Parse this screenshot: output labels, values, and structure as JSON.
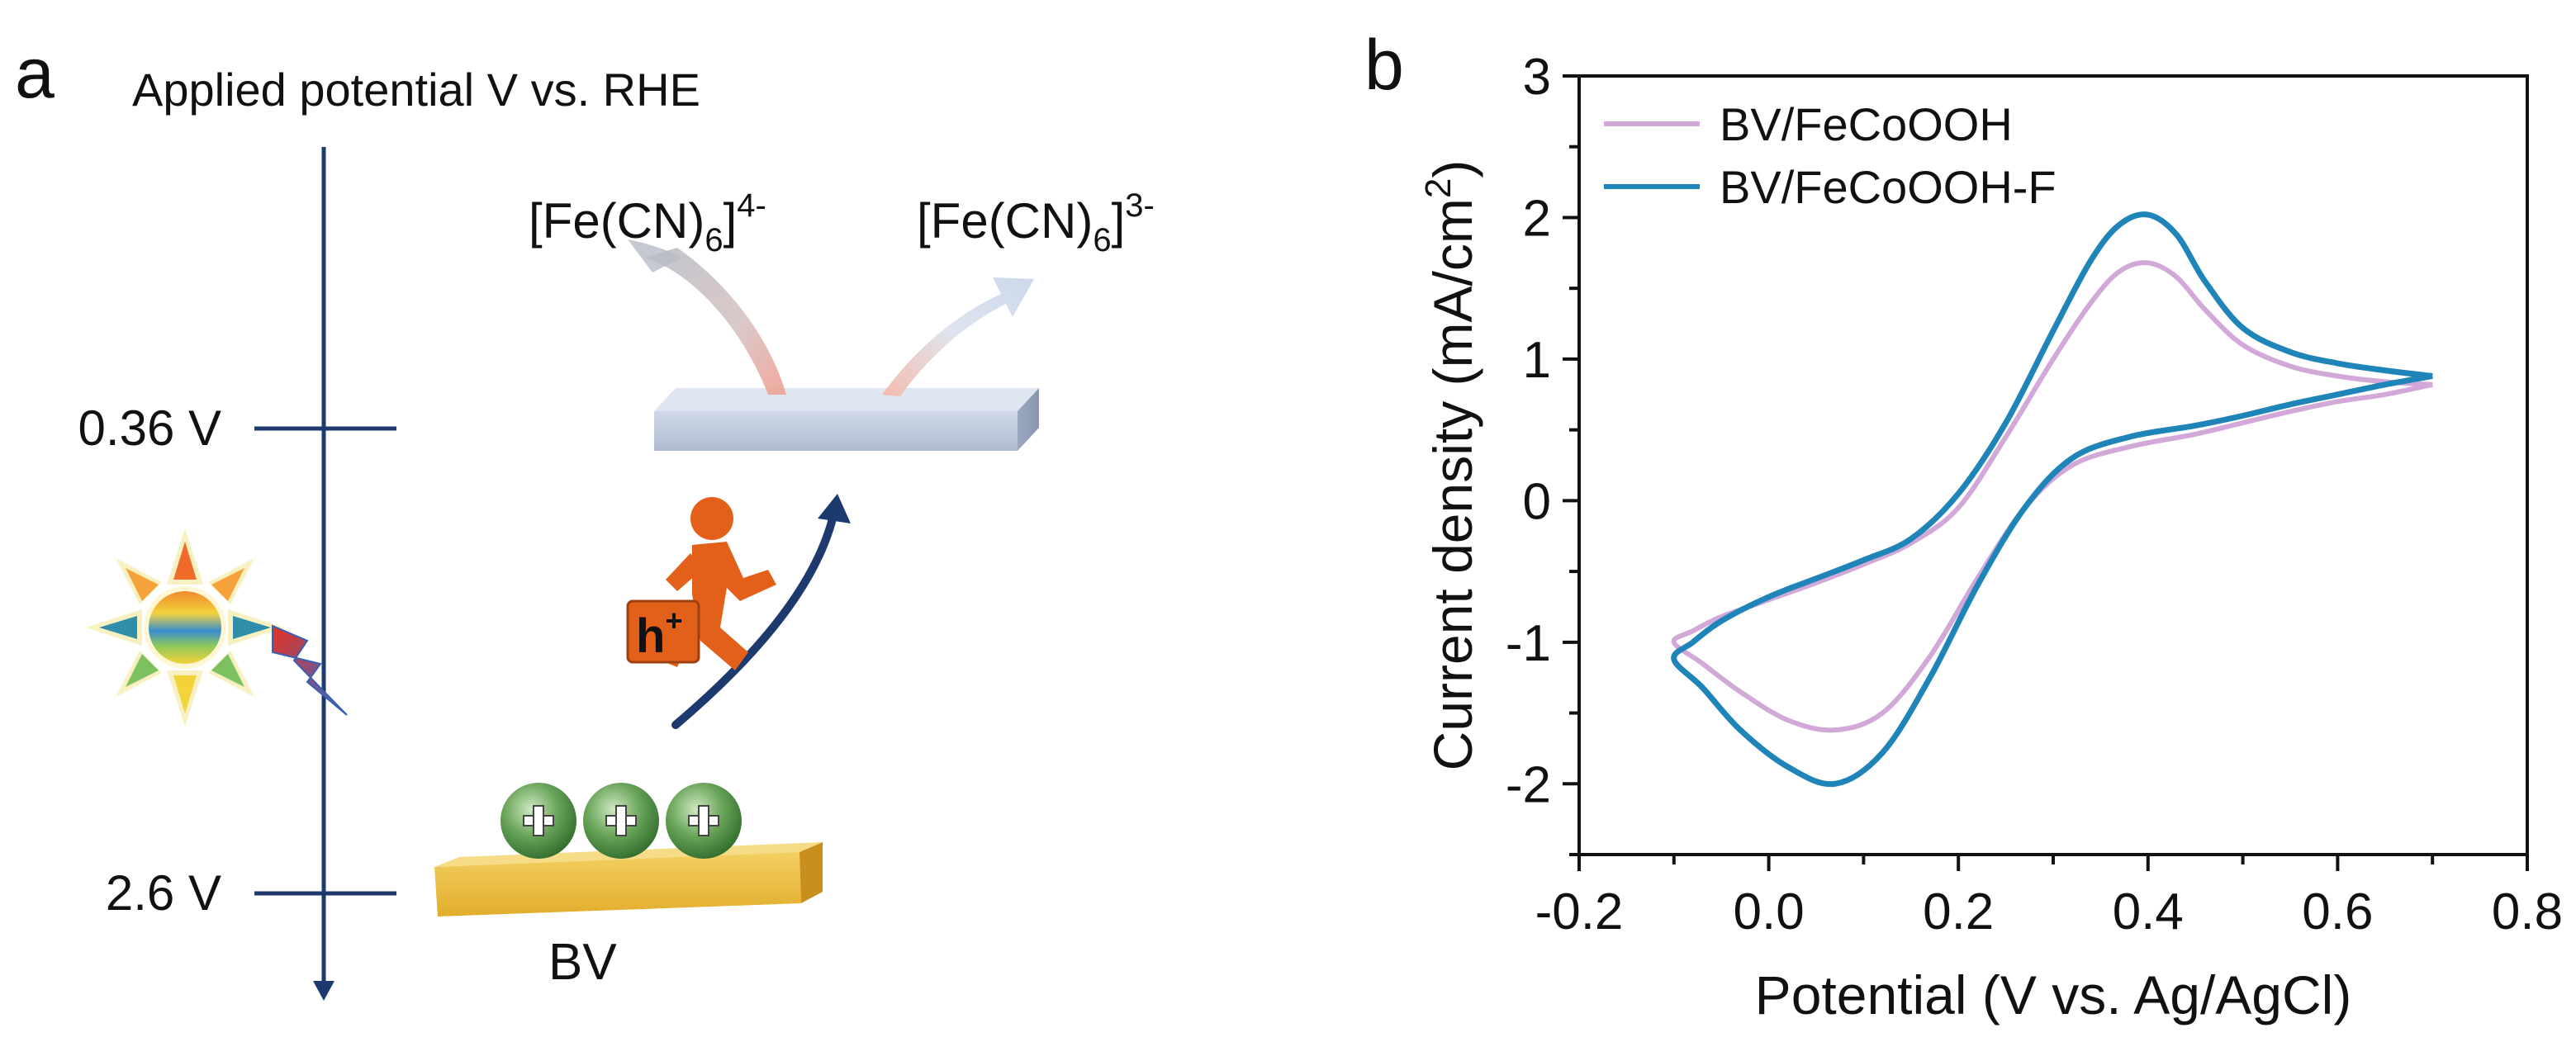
{
  "panel_a": {
    "label": "a",
    "axis_title": "Applied potential V vs. RHE",
    "level_top": "0.36 V",
    "level_bottom": "2.6 V",
    "ferro_base": "[Fe(CN)",
    "ferro_sub": "6",
    "ferro_close": "]",
    "ferro_sup": "4-",
    "ferri_base": "[Fe(CN)",
    "ferri_sub": "6",
    "ferri_close": "]",
    "ferri_sup": "3-",
    "hole_label": "h",
    "hole_sup": "+",
    "plus_sign": "+",
    "substrate_label": "BV"
  },
  "panel_b": {
    "label": "b"
  },
  "chart_data": {
    "type": "line",
    "xlabel": "Potential (V vs. Ag/AgCl)",
    "ylabel_main": "Current density (mA/cm",
    "ylabel_sup": "2",
    "ylabel_close": ")",
    "xlim": [
      -0.2,
      0.8
    ],
    "ylim": [
      -2.5,
      3.0
    ],
    "xticks": [
      -0.2,
      0.0,
      0.2,
      0.4,
      0.6,
      0.8
    ],
    "xtick_labels": [
      "-0.2",
      "0.0",
      "0.2",
      "0.4",
      "0.6",
      "0.8"
    ],
    "yticks": [
      -2,
      -1,
      0,
      1,
      2,
      3
    ],
    "ytick_labels": [
      "-2",
      "-1",
      "0",
      "1",
      "2",
      "3"
    ],
    "legend_position": "top-left",
    "series": [
      {
        "name": "BV/FeCoOOH",
        "color": "#d2a8d8",
        "points": [
          [
            0.7,
            0.82
          ],
          [
            0.65,
            0.84
          ],
          [
            0.6,
            0.88
          ],
          [
            0.55,
            0.95
          ],
          [
            0.5,
            1.1
          ],
          [
            0.46,
            1.35
          ],
          [
            0.43,
            1.58
          ],
          [
            0.4,
            1.68
          ],
          [
            0.37,
            1.62
          ],
          [
            0.34,
            1.4
          ],
          [
            0.3,
            1.0
          ],
          [
            0.25,
            0.45
          ],
          [
            0.2,
            -0.05
          ],
          [
            0.15,
            -0.3
          ],
          [
            0.1,
            -0.45
          ],
          [
            0.05,
            -0.58
          ],
          [
            0.0,
            -0.7
          ],
          [
            -0.05,
            -0.82
          ],
          [
            -0.08,
            -0.92
          ],
          [
            -0.1,
            -1.0
          ],
          [
            -0.07,
            -1.15
          ],
          [
            -0.03,
            -1.35
          ],
          [
            0.02,
            -1.55
          ],
          [
            0.07,
            -1.62
          ],
          [
            0.12,
            -1.5
          ],
          [
            0.17,
            -1.1
          ],
          [
            0.22,
            -0.55
          ],
          [
            0.27,
            -0.05
          ],
          [
            0.32,
            0.25
          ],
          [
            0.38,
            0.38
          ],
          [
            0.45,
            0.47
          ],
          [
            0.5,
            0.55
          ],
          [
            0.55,
            0.63
          ],
          [
            0.6,
            0.7
          ],
          [
            0.65,
            0.75
          ],
          [
            0.7,
            0.82
          ]
        ]
      },
      {
        "name": "BV/FeCoOOH-F",
        "color": "#1f84b8",
        "points": [
          [
            0.7,
            0.88
          ],
          [
            0.65,
            0.92
          ],
          [
            0.6,
            0.97
          ],
          [
            0.55,
            1.05
          ],
          [
            0.5,
            1.22
          ],
          [
            0.46,
            1.55
          ],
          [
            0.43,
            1.88
          ],
          [
            0.4,
            2.02
          ],
          [
            0.37,
            1.95
          ],
          [
            0.34,
            1.7
          ],
          [
            0.3,
            1.2
          ],
          [
            0.25,
            0.55
          ],
          [
            0.2,
            0.05
          ],
          [
            0.15,
            -0.27
          ],
          [
            0.1,
            -0.42
          ],
          [
            0.05,
            -0.55
          ],
          [
            0.0,
            -0.68
          ],
          [
            -0.05,
            -0.85
          ],
          [
            -0.08,
            -1.0
          ],
          [
            -0.1,
            -1.12
          ],
          [
            -0.07,
            -1.32
          ],
          [
            -0.03,
            -1.62
          ],
          [
            0.02,
            -1.88
          ],
          [
            0.07,
            -2.0
          ],
          [
            0.12,
            -1.78
          ],
          [
            0.17,
            -1.25
          ],
          [
            0.22,
            -0.6
          ],
          [
            0.27,
            -0.05
          ],
          [
            0.32,
            0.3
          ],
          [
            0.38,
            0.45
          ],
          [
            0.45,
            0.53
          ],
          [
            0.5,
            0.6
          ],
          [
            0.55,
            0.68
          ],
          [
            0.6,
            0.75
          ],
          [
            0.65,
            0.82
          ],
          [
            0.7,
            0.88
          ]
        ]
      }
    ]
  }
}
